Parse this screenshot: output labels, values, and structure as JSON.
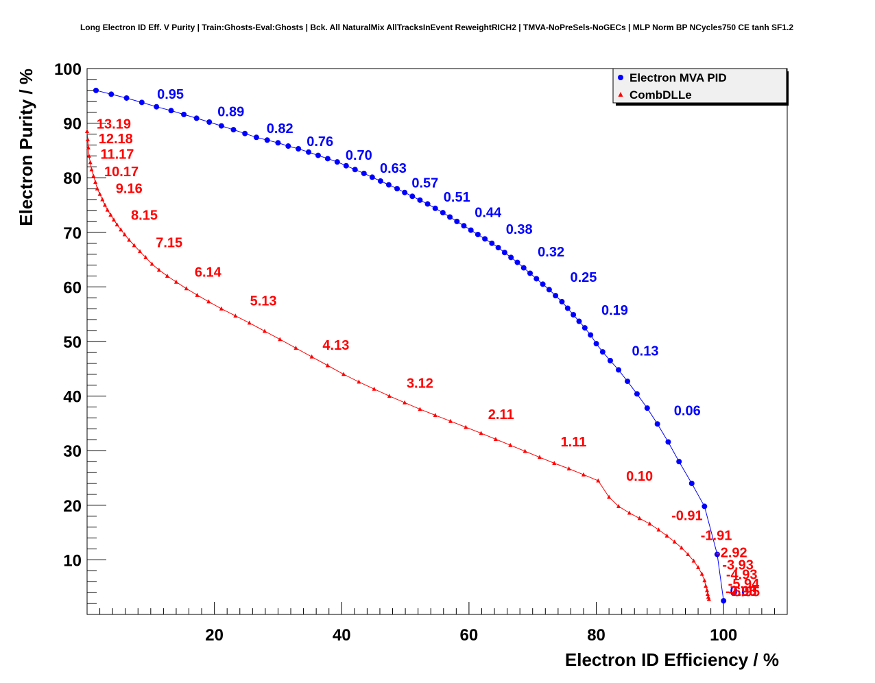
{
  "chart_data": {
    "type": "scatter",
    "title": "Long Electron ID Eff. V Purity | Train:Ghosts-Eval:Ghosts | Bck. All NaturalMix AllTracksInEvent ReweightRICH2 | TMVA-NoPreSels-NoGECs | MLP Norm BP NCycles750 CE tanh SF1.2",
    "xlabel": "Electron ID Efficiency / %",
    "ylabel": "Electron Purity / %",
    "xlim": [
      0,
      110
    ],
    "ylim": [
      0,
      100
    ],
    "xticks": [
      "20",
      "40",
      "60",
      "80",
      "100"
    ],
    "yticks": [
      "10",
      "20",
      "30",
      "40",
      "50",
      "60",
      "70",
      "80",
      "90",
      "100"
    ],
    "grid": false,
    "legend_position": "top-right",
    "series": [
      {
        "name": "Electron MVA PID",
        "color": "#0000ff",
        "marker": "circle",
        "x": [
          1.4,
          3.8,
          6.2,
          8.6,
          10.9,
          13.2,
          15.2,
          17.2,
          19.2,
          21.1,
          23.0,
          24.8,
          26.6,
          28.3,
          30.0,
          31.6,
          33.2,
          34.8,
          36.3,
          37.8,
          39.3,
          40.7,
          42.1,
          43.5,
          44.8,
          46.1,
          47.4,
          48.7,
          49.9,
          51.1,
          52.3,
          53.5,
          54.7,
          55.9,
          57.0,
          58.1,
          59.2,
          60.3,
          61.4,
          62.5,
          63.6,
          64.6,
          65.6,
          66.6,
          67.6,
          68.6,
          69.6,
          70.6,
          71.6,
          72.6,
          73.6,
          74.6,
          75.5,
          76.4,
          77.3,
          78.2,
          79.1,
          80.0,
          81.0,
          82.2,
          83.5,
          84.9,
          86.4,
          88.0,
          89.6,
          91.3,
          93.0,
          95.0,
          97.0,
          99.0,
          100.0
        ],
        "y": [
          96.0,
          95.3,
          94.6,
          93.8,
          93.0,
          92.3,
          91.6,
          90.9,
          90.2,
          89.5,
          88.8,
          88.1,
          87.4,
          86.9,
          86.4,
          85.8,
          85.3,
          84.7,
          84.1,
          83.5,
          82.9,
          82.2,
          81.5,
          80.8,
          80.1,
          79.4,
          78.7,
          78.0,
          77.3,
          76.6,
          75.9,
          75.2,
          74.4,
          73.6,
          72.8,
          72.0,
          71.2,
          70.4,
          69.6,
          68.8,
          68.0,
          67.2,
          66.3,
          65.4,
          64.5,
          63.5,
          62.5,
          61.5,
          60.5,
          59.5,
          58.4,
          57.3,
          56.1,
          54.9,
          53.7,
          52.5,
          51.2,
          49.6,
          48.1,
          46.5,
          44.8,
          42.7,
          40.4,
          37.8,
          34.9,
          31.6,
          28.0,
          24.0,
          19.8,
          11.0,
          2.5
        ],
        "labels": [
          {
            "text": "0.95",
            "x": 11.0,
            "y": 94.5
          },
          {
            "text": "0.89",
            "x": 20.5,
            "y": 91.3
          },
          {
            "text": "0.82",
            "x": 28.2,
            "y": 88.2
          },
          {
            "text": "0.76",
            "x": 34.5,
            "y": 85.8
          },
          {
            "text": "0.70",
            "x": 40.6,
            "y": 83.3
          },
          {
            "text": "0.63",
            "x": 46.0,
            "y": 80.9
          },
          {
            "text": "0.57",
            "x": 51.0,
            "y": 78.2
          },
          {
            "text": "0.51",
            "x": 56.0,
            "y": 75.6
          },
          {
            "text": "0.44",
            "x": 60.9,
            "y": 72.8
          },
          {
            "text": "0.38",
            "x": 65.8,
            "y": 69.7
          },
          {
            "text": "0.32",
            "x": 70.8,
            "y": 65.6
          },
          {
            "text": "0.25",
            "x": 75.9,
            "y": 60.9
          },
          {
            "text": "0.19",
            "x": 80.8,
            "y": 54.9
          },
          {
            "text": "0.13",
            "x": 85.6,
            "y": 47.4
          },
          {
            "text": "0.06",
            "x": 92.2,
            "y": 36.5
          },
          {
            "text": "0.00",
            "x": 101.0,
            "y": 3.4
          }
        ]
      },
      {
        "name": "CombDLLe",
        "color": "#ff0000",
        "marker": "triangle",
        "x": [
          0.0,
          0.1,
          0.2,
          0.3,
          0.5,
          0.7,
          1.0,
          1.3,
          1.6,
          2.0,
          2.4,
          2.8,
          3.2,
          3.7,
          4.2,
          4.7,
          5.3,
          5.9,
          6.6,
          7.4,
          8.3,
          9.2,
          10.2,
          11.3,
          12.6,
          14.0,
          15.6,
          17.3,
          19.1,
          21.1,
          23.3,
          25.5,
          27.9,
          30.3,
          32.8,
          35.3,
          37.8,
          40.3,
          42.7,
          45.1,
          47.5,
          49.9,
          52.3,
          54.7,
          57.1,
          59.5,
          61.9,
          64.2,
          66.5,
          68.8,
          71.1,
          73.4,
          75.7,
          78.0,
          80.3,
          82.0,
          83.5,
          85.2,
          86.8,
          88.4,
          89.8,
          91.1,
          92.3,
          93.4,
          94.4,
          95.3,
          96.0,
          96.6,
          97.0,
          97.2,
          97.4,
          97.5,
          97.6,
          97.7
        ],
        "y": [
          88.5,
          87.0,
          85.5,
          84.0,
          82.8,
          81.5,
          80.3,
          79.2,
          78.0,
          77.0,
          76.0,
          75.0,
          74.1,
          73.2,
          72.3,
          71.4,
          70.5,
          69.6,
          68.6,
          67.6,
          66.5,
          65.4,
          64.2,
          63.1,
          62.0,
          60.9,
          59.7,
          58.5,
          57.3,
          56.0,
          54.7,
          53.4,
          51.9,
          50.4,
          48.8,
          47.2,
          45.6,
          44.0,
          42.6,
          41.3,
          40.0,
          38.8,
          37.6,
          36.5,
          35.4,
          34.3,
          33.2,
          32.1,
          31.0,
          29.9,
          28.8,
          27.7,
          26.7,
          25.6,
          24.5,
          21.5,
          19.8,
          18.6,
          17.6,
          16.6,
          15.5,
          14.4,
          13.3,
          12.2,
          11.0,
          9.8,
          8.6,
          7.4,
          6.2,
          5.2,
          4.4,
          3.7,
          3.2,
          2.8
        ],
        "labels": [
          {
            "text": "13.19",
            "x": 1.5,
            "y": 89.0
          },
          {
            "text": "12.18",
            "x": 1.8,
            "y": 86.3
          },
          {
            "text": "11.17",
            "x": 2.1,
            "y": 83.5
          },
          {
            "text": "10.17",
            "x": 2.7,
            "y": 80.3
          },
          {
            "text": "9.16",
            "x": 4.5,
            "y": 77.2
          },
          {
            "text": "8.15",
            "x": 6.9,
            "y": 72.3
          },
          {
            "text": "7.15",
            "x": 10.8,
            "y": 67.3
          },
          {
            "text": "6.14",
            "x": 16.9,
            "y": 61.9
          },
          {
            "text": "5.13",
            "x": 25.6,
            "y": 56.6
          },
          {
            "text": "4.13",
            "x": 37.0,
            "y": 48.5
          },
          {
            "text": "3.12",
            "x": 50.2,
            "y": 41.5
          },
          {
            "text": "2.11",
            "x": 63.0,
            "y": 35.8
          },
          {
            "text": "1.11",
            "x": 74.4,
            "y": 30.8
          },
          {
            "text": "0.10",
            "x": 84.7,
            "y": 24.5
          },
          {
            "text": "-0.91",
            "x": 91.8,
            "y": 17.3
          },
          {
            "text": "-1.91",
            "x": 96.4,
            "y": 13.6
          },
          {
            "text": "-2.92",
            "x": 98.8,
            "y": 10.5
          },
          {
            "text": "-3.93",
            "x": 99.8,
            "y": 8.2
          },
          {
            "text": "-4.93",
            "x": 100.4,
            "y": 6.5
          },
          {
            "text": "-5.94",
            "x": 100.7,
            "y": 4.8
          },
          {
            "text": "-6.95",
            "x": 100.8,
            "y": 3.3
          },
          {
            "text": "-7.95",
            "x": 100.3,
            "y": 3.4
          }
        ]
      }
    ]
  }
}
